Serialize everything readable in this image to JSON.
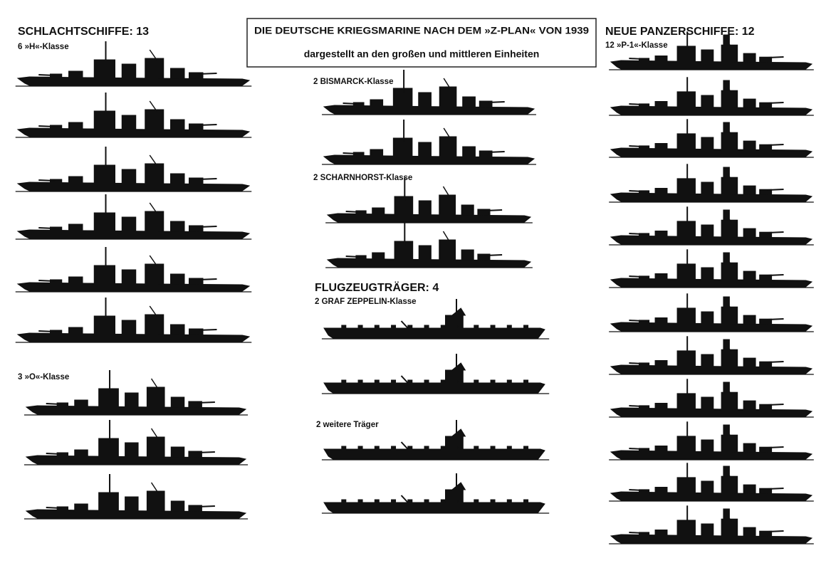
{
  "header": {
    "title": "DIE DEUTSCHE KRIEGSMARINE NACH DEM »Z-PLAN« VON 1939",
    "subtitle": "dargestellt an den großen und mittleren Einheiten"
  },
  "battleships": {
    "heading": "SCHLACHTSCHIFFE: 13",
    "groups": [
      "6 »H«-Klasse",
      "3 »O«-Klasse"
    ]
  },
  "middle": {
    "groups": [
      "2 BISMARCK-Klasse",
      "2 SCHARNHORST-Klasse"
    ]
  },
  "carriers": {
    "heading": "FLUGZEUGTRÄGER: 4",
    "groups": [
      "2 GRAF ZEPPELIN-Klasse",
      "2 weitere Träger"
    ]
  },
  "panzerschiffe": {
    "heading": "NEUE PANZERSCHIFFE: 12",
    "groups": [
      "12 »P-1«-Klasse"
    ]
  }
}
